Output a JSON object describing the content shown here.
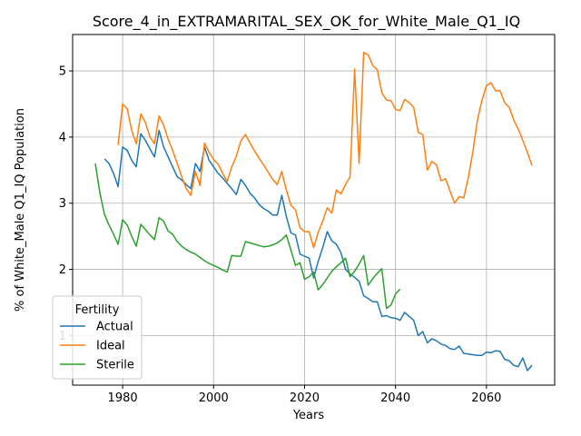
{
  "chart_data": {
    "type": "line",
    "title": "Score_4_in_EXTRAMARITAL_SEX_OK_for_White_Male_Q1_IQ",
    "xlabel": "Years",
    "ylabel": "% of White_Male Q1_IQ Population",
    "xlim": [
      1969,
      2075
    ],
    "ylim": [
      0.25,
      5.55
    ],
    "xticks": [
      1980,
      2000,
      2020,
      2040,
      2060
    ],
    "yticks": [
      1,
      2,
      3,
      4,
      5
    ],
    "grid": true,
    "legend": {
      "title": "Fertility",
      "position": "lower-left"
    },
    "series": [
      {
        "name": "Actual",
        "color": "#1f77b4",
        "x": [
          1976,
          1977,
          1978,
          1979,
          1980,
          1981,
          1982,
          1983,
          1984,
          1985,
          1986,
          1987,
          1988,
          1989,
          1990,
          1991,
          1992,
          1993,
          1994,
          1995,
          1996,
          1997,
          1998,
          1999,
          2000,
          2001,
          2002,
          2003,
          2004,
          2005,
          2006,
          2007,
          2008,
          2009,
          2010,
          2011,
          2012,
          2013,
          2014,
          2015,
          2016,
          2017,
          2018,
          2019,
          2020,
          2021,
          2022,
          2023,
          2024,
          2025,
          2026,
          2027,
          2028,
          2029,
          2030,
          2031,
          2032,
          2033,
          2034,
          2035,
          2036,
          2037,
          2038,
          2039,
          2040,
          2041,
          2042,
          2043,
          2044,
          2045,
          2046,
          2047,
          2048,
          2049,
          2050,
          2051,
          2052,
          2053,
          2054,
          2055,
          2056,
          2057,
          2058,
          2059,
          2060,
          2061,
          2062,
          2063,
          2064,
          2065,
          2066,
          2067,
          2068,
          2069,
          2070
        ],
        "values": [
          3.67,
          3.6,
          3.45,
          3.25,
          3.85,
          3.8,
          3.65,
          3.55,
          4.05,
          3.95,
          3.82,
          3.7,
          4.1,
          3.85,
          3.7,
          3.55,
          3.4,
          3.35,
          3.28,
          3.22,
          3.6,
          3.48,
          3.85,
          3.65,
          3.55,
          3.45,
          3.38,
          3.3,
          3.22,
          3.13,
          3.36,
          3.27,
          3.15,
          3.08,
          2.98,
          2.92,
          2.88,
          2.82,
          2.82,
          3.12,
          2.8,
          2.55,
          2.52,
          2.23,
          2.2,
          2.17,
          1.87,
          2.12,
          2.33,
          2.57,
          2.43,
          2.38,
          2.25,
          2.0,
          1.93,
          1.88,
          1.82,
          1.6,
          1.56,
          1.51,
          1.51,
          1.29,
          1.3,
          1.27,
          1.26,
          1.23,
          1.35,
          1.29,
          1.23,
          1.0,
          1.06,
          0.89,
          0.95,
          0.92,
          0.87,
          0.85,
          0.8,
          0.79,
          0.84,
          0.73,
          0.72,
          0.71,
          0.7,
          0.7,
          0.75,
          0.74,
          0.77,
          0.76,
          0.64,
          0.62,
          0.55,
          0.53,
          0.66,
          0.47,
          0.55
        ]
      },
      {
        "name": "Ideal",
        "color": "#ff7f0e",
        "x": [
          1979,
          1980,
          1981,
          1982,
          1983,
          1984,
          1985,
          1986,
          1987,
          1988,
          1989,
          1990,
          1991,
          1992,
          1993,
          1994,
          1995,
          1996,
          1997,
          1998,
          1999,
          2000,
          2001,
          2002,
          2003,
          2004,
          2005,
          2006,
          2007,
          2008,
          2009,
          2010,
          2011,
          2012,
          2013,
          2014,
          2015,
          2016,
          2017,
          2018,
          2019,
          2020,
          2021,
          2022,
          2023,
          2024,
          2025,
          2026,
          2027,
          2028,
          2029,
          2030,
          2031,
          2032,
          2033,
          2034,
          2035,
          2036,
          2037,
          2038,
          2039,
          2040,
          2041,
          2042,
          2043,
          2044,
          2045,
          2046,
          2047,
          2048,
          2049,
          2050,
          2051,
          2052,
          2053,
          2054,
          2055,
          2056,
          2057,
          2058,
          2059,
          2060,
          2061,
          2062,
          2063,
          2064,
          2065,
          2066,
          2067,
          2068,
          2069,
          2070
        ],
        "values": [
          3.88,
          4.5,
          4.43,
          4.1,
          3.9,
          4.35,
          4.22,
          4.0,
          3.9,
          4.32,
          4.18,
          3.97,
          3.8,
          3.6,
          3.4,
          3.22,
          3.12,
          3.48,
          3.27,
          3.91,
          3.77,
          3.66,
          3.59,
          3.45,
          3.33,
          3.55,
          3.71,
          3.94,
          4.04,
          3.91,
          3.79,
          3.68,
          3.58,
          3.47,
          3.36,
          3.28,
          3.48,
          3.2,
          2.97,
          2.9,
          2.63,
          2.57,
          2.57,
          2.33,
          2.56,
          2.73,
          2.93,
          2.85,
          3.2,
          3.14,
          3.28,
          3.4,
          5.03,
          3.6,
          5.28,
          5.24,
          5.08,
          5.02,
          4.67,
          4.56,
          4.55,
          4.42,
          4.4,
          4.57,
          4.52,
          4.45,
          4.07,
          4.04,
          3.5,
          3.63,
          3.58,
          3.34,
          3.37,
          3.18,
          3.0,
          3.1,
          3.08,
          3.38,
          3.77,
          4.25,
          4.55,
          4.78,
          4.82,
          4.7,
          4.7,
          4.52,
          4.45,
          4.26,
          4.12,
          3.95,
          3.77,
          3.57
        ]
      },
      {
        "name": "Sterile",
        "color": "#2ca02c",
        "x": [
          1974,
          1975,
          1976,
          1977,
          1978,
          1979,
          1980,
          1981,
          1982,
          1983,
          1984,
          1985,
          1986,
          1987,
          1988,
          1989,
          1990,
          1991,
          1992,
          1993,
          1994,
          1995,
          1996,
          1997,
          1998,
          1999,
          2000,
          2001,
          2002,
          2003,
          2004,
          2005,
          2006,
          2007,
          2008,
          2009,
          2010,
          2011,
          2012,
          2013,
          2014,
          2015,
          2016,
          2017,
          2018,
          2019,
          2020,
          2021,
          2022,
          2023,
          2024,
          2025,
          2026,
          2027,
          2028,
          2029,
          2030,
          2031,
          2032,
          2033,
          2034,
          2035,
          2036,
          2037,
          2038,
          2039,
          2040,
          2041
        ],
        "values": [
          3.6,
          3.15,
          2.83,
          2.67,
          2.53,
          2.38,
          2.75,
          2.67,
          2.5,
          2.35,
          2.68,
          2.6,
          2.52,
          2.45,
          2.78,
          2.73,
          2.58,
          2.53,
          2.42,
          2.35,
          2.3,
          2.26,
          2.23,
          2.18,
          2.13,
          2.09,
          2.06,
          2.03,
          1.99,
          1.96,
          2.21,
          2.2,
          2.2,
          2.42,
          2.4,
          2.38,
          2.36,
          2.34,
          2.35,
          2.37,
          2.4,
          2.45,
          2.52,
          2.29,
          2.06,
          2.1,
          1.85,
          1.89,
          1.96,
          1.69,
          1.77,
          1.87,
          1.97,
          2.04,
          2.1,
          2.17,
          1.89,
          1.97,
          2.08,
          2.21,
          1.76,
          1.86,
          1.94,
          2.01,
          1.41,
          1.46,
          1.63,
          1.7
        ]
      }
    ]
  }
}
